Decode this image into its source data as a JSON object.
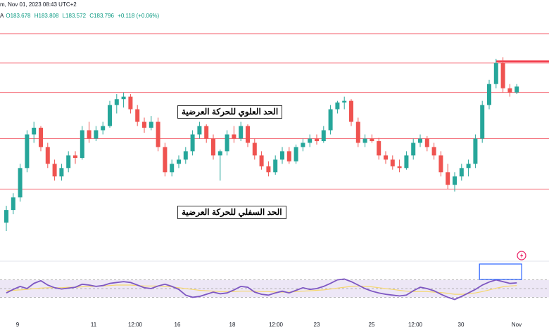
{
  "header": {
    "title_fragment": "m, Nov 01, 2023 08:43 UTC+2",
    "ohlc_prefix": "A",
    "open": "O183.678",
    "high": "H183.808",
    "low": "L183.572",
    "close": "C183.796",
    "change": "+0.118 (+0.06%)"
  },
  "labels": {
    "upper": "الحد العلوي للحركة العرضية",
    "lower": "الحد السفلي للحركة العرضية"
  },
  "colors": {
    "up": "#26a69a",
    "down": "#ef5350",
    "rsi_line": "#7e57c2",
    "rsi_ma": "#f5d76e",
    "rsi_band": "#ede7f6",
    "highlight_box": "#2962ff",
    "level_line": "#f23645"
  },
  "chart_data": {
    "type": "candlestick",
    "x_ticks": [
      "9",
      "11",
      "12:00",
      "16",
      "18",
      "12:00",
      "23",
      "25",
      "12:00",
      "30",
      "Nov"
    ],
    "ohlc": [
      [
        182.85,
        183.05,
        182.75,
        183.0
      ],
      [
        183.0,
        183.2,
        182.95,
        183.15
      ],
      [
        183.15,
        183.55,
        183.1,
        183.5
      ],
      [
        183.5,
        183.95,
        183.45,
        183.9
      ],
      [
        183.9,
        184.05,
        183.8,
        183.98
      ],
      [
        183.98,
        184.0,
        183.7,
        183.75
      ],
      [
        183.75,
        183.8,
        183.5,
        183.55
      ],
      [
        183.55,
        183.6,
        183.35,
        183.4
      ],
      [
        183.4,
        183.55,
        183.35,
        183.5
      ],
      [
        183.5,
        183.7,
        183.45,
        183.65
      ],
      [
        183.65,
        183.7,
        183.55,
        183.62
      ],
      [
        183.62,
        184.0,
        183.6,
        183.95
      ],
      [
        183.95,
        184.05,
        183.8,
        183.85
      ],
      [
        183.85,
        184.0,
        183.82,
        183.95
      ],
      [
        183.95,
        184.05,
        183.9,
        184.0
      ],
      [
        184.0,
        184.3,
        183.98,
        184.25
      ],
      [
        184.25,
        184.38,
        184.15,
        184.32
      ],
      [
        184.32,
        184.4,
        184.22,
        184.35
      ],
      [
        184.35,
        184.38,
        184.15,
        184.2
      ],
      [
        184.2,
        184.25,
        184.0,
        184.05
      ],
      [
        184.05,
        184.1,
        183.92,
        183.98
      ],
      [
        183.98,
        184.12,
        183.95,
        184.05
      ],
      [
        184.05,
        184.1,
        183.7,
        183.75
      ],
      [
        183.75,
        183.8,
        183.4,
        183.45
      ],
      [
        183.45,
        183.6,
        183.4,
        183.55
      ],
      [
        183.55,
        183.65,
        183.5,
        183.6
      ],
      [
        183.6,
        183.75,
        183.55,
        183.7
      ],
      [
        183.7,
        183.95,
        183.65,
        183.9
      ],
      [
        183.9,
        184.05,
        183.85,
        184.0
      ],
      [
        184.0,
        184.02,
        183.8,
        183.85
      ],
      [
        183.85,
        183.9,
        183.6,
        183.65
      ],
      [
        183.65,
        183.72,
        183.35,
        183.7
      ],
      [
        183.7,
        183.95,
        183.65,
        183.9
      ],
      [
        183.9,
        184.0,
        183.8,
        183.85
      ],
      [
        183.85,
        184.05,
        183.82,
        184.0
      ],
      [
        184.0,
        184.02,
        183.75,
        183.8
      ],
      [
        183.8,
        183.85,
        183.6,
        183.65
      ],
      [
        183.65,
        183.7,
        183.48,
        183.52
      ],
      [
        183.52,
        183.58,
        183.4,
        183.45
      ],
      [
        183.45,
        183.65,
        183.42,
        183.6
      ],
      [
        183.6,
        183.75,
        183.55,
        183.7
      ],
      [
        183.7,
        183.75,
        183.55,
        183.58
      ],
      [
        183.58,
        183.78,
        183.55,
        183.75
      ],
      [
        183.75,
        183.85,
        183.7,
        183.8
      ],
      [
        183.8,
        183.9,
        183.75,
        183.85
      ],
      [
        183.85,
        183.9,
        183.78,
        183.82
      ],
      [
        183.82,
        184.0,
        183.8,
        183.95
      ],
      [
        183.95,
        184.25,
        183.9,
        184.2
      ],
      [
        184.2,
        184.3,
        184.15,
        184.28
      ],
      [
        184.28,
        184.35,
        184.2,
        184.3
      ],
      [
        184.3,
        184.32,
        184.0,
        184.05
      ],
      [
        184.05,
        184.1,
        183.75,
        183.8
      ],
      [
        183.8,
        183.9,
        183.75,
        183.85
      ],
      [
        183.85,
        183.9,
        183.8,
        183.82
      ],
      [
        183.82,
        183.86,
        183.6,
        183.65
      ],
      [
        183.65,
        183.7,
        183.55,
        183.6
      ],
      [
        183.6,
        183.65,
        183.48,
        183.52
      ],
      [
        183.52,
        183.6,
        183.45,
        183.5
      ],
      [
        183.5,
        183.7,
        183.48,
        183.65
      ],
      [
        183.65,
        183.85,
        183.6,
        183.8
      ],
      [
        183.8,
        183.9,
        183.75,
        183.85
      ],
      [
        183.85,
        183.88,
        183.7,
        183.75
      ],
      [
        183.75,
        183.8,
        183.6,
        183.65
      ],
      [
        183.65,
        183.7,
        183.4,
        183.45
      ],
      [
        183.45,
        183.55,
        183.25,
        183.3
      ],
      [
        183.3,
        183.45,
        183.22,
        183.4
      ],
      [
        183.4,
        183.55,
        183.35,
        183.5
      ],
      [
        183.5,
        183.6,
        183.4,
        183.55
      ],
      [
        183.55,
        183.9,
        183.5,
        183.85
      ],
      [
        183.85,
        184.3,
        183.8,
        184.25
      ],
      [
        184.25,
        184.55,
        184.2,
        184.5
      ],
      [
        184.5,
        184.8,
        184.45,
        184.75
      ],
      [
        184.75,
        184.82,
        184.4,
        184.45
      ],
      [
        184.45,
        184.5,
        184.35,
        184.4
      ],
      [
        184.4,
        184.5,
        184.38,
        184.47
      ]
    ],
    "levels": {
      "horizontal": [
        185.1,
        184.75,
        184.4,
        183.85,
        183.25
      ],
      "red_ray": 184.77
    },
    "price_range": [
      182.7,
      185.25
    ],
    "rsi": [
      40,
      48,
      55,
      50,
      62,
      68,
      58,
      52,
      49,
      51,
      53,
      60,
      58,
      55,
      57,
      62,
      64,
      66,
      64,
      58,
      52,
      50,
      56,
      60,
      55,
      48,
      35,
      30,
      32,
      37,
      42,
      38,
      40,
      47,
      55,
      53,
      42,
      37,
      35,
      40,
      44,
      40,
      46,
      52,
      48,
      50,
      55,
      62,
      70,
      72,
      66,
      58,
      50,
      44,
      40,
      37,
      35,
      33,
      35,
      45,
      53,
      50,
      45,
      37,
      30,
      25,
      32,
      40,
      48,
      58,
      65,
      70,
      66,
      62,
      63
    ],
    "rsi_ma": [
      45,
      46,
      47,
      48,
      50,
      51,
      52,
      52,
      52,
      53,
      53,
      54,
      55,
      55,
      56,
      57,
      58,
      58,
      58,
      57,
      56,
      56,
      56,
      55,
      54,
      52,
      50,
      48,
      46,
      45,
      44,
      43,
      43,
      43,
      44,
      44,
      44,
      43,
      43,
      42,
      42,
      42,
      43,
      44,
      45,
      46,
      47,
      49,
      51,
      53,
      55,
      56,
      55,
      54,
      52,
      50,
      48,
      46,
      44,
      43,
      43,
      43,
      42,
      41,
      39,
      37,
      37,
      38,
      40,
      43,
      47,
      51,
      54,
      56,
      57
    ],
    "rsi_range": [
      0,
      100
    ],
    "rsi_band": [
      30,
      70
    ]
  }
}
